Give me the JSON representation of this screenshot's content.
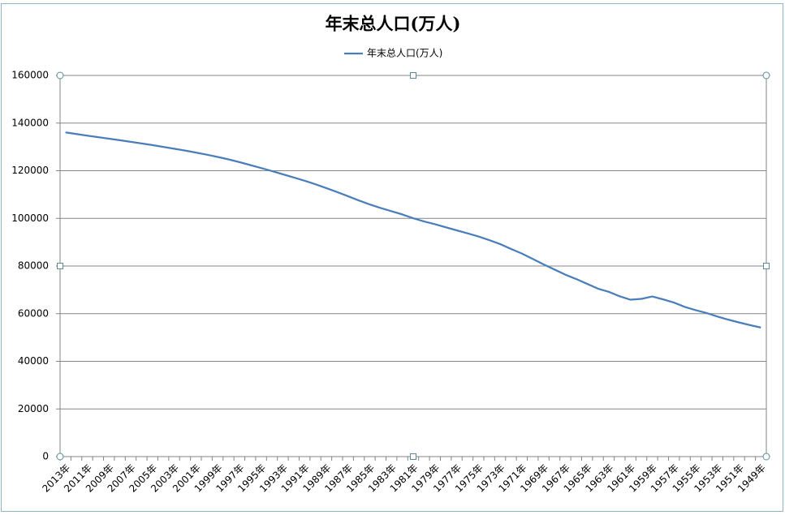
{
  "chart_data": {
    "type": "line",
    "title": "年末总人口(万人)",
    "categories": [
      "2013年",
      null,
      "2011年",
      null,
      "2009年",
      null,
      "2007年",
      null,
      "2005年",
      null,
      "2003年",
      null,
      "2001年",
      null,
      "1999年",
      null,
      "1997年",
      null,
      "1995年",
      null,
      "1993年",
      null,
      "1991年",
      null,
      "1989年",
      null,
      "1987年",
      null,
      "1985年",
      null,
      "1983年",
      null,
      "1981年",
      null,
      "1979年",
      null,
      "1977年",
      null,
      "1975年",
      null,
      "1973年",
      null,
      "1971年",
      null,
      "1969年",
      null,
      "1967年",
      null,
      "1965年",
      null,
      "1963年",
      null,
      "1961年",
      null,
      "1959年",
      null,
      "1957年",
      null,
      "1955年",
      null,
      "1953年",
      null,
      "1951年",
      null,
      "1949年"
    ],
    "series": [
      {
        "name": "年末总人口(万人)",
        "color": "#4a7ebb",
        "values": [
          136072,
          135404,
          134735,
          134091,
          133450,
          132802,
          132129,
          131448,
          130756,
          129988,
          129227,
          128453,
          127627,
          126743,
          125786,
          124761,
          123626,
          122389,
          121121,
          119850,
          118517,
          117171,
          115823,
          114333,
          112704,
          111026,
          109300,
          107507,
          105851,
          104357,
          103008,
          101654,
          100072,
          98705,
          97542,
          96259,
          94974,
          93717,
          92420,
          90859,
          89211,
          87177,
          85229,
          82992,
          80671,
          78534,
          76368,
          74542,
          72538,
          70499,
          69172,
          67295,
          65859,
          66207,
          67207,
          65994,
          64653,
          62828,
          61465,
          60266,
          58796,
          57482,
          56300,
          55196,
          54167
        ]
      }
    ],
    "ylim": [
      0,
      160000
    ],
    "yticks": [
      0,
      20000,
      40000,
      60000,
      80000,
      100000,
      120000,
      140000,
      160000
    ],
    "grid": true,
    "legend": "top"
  }
}
